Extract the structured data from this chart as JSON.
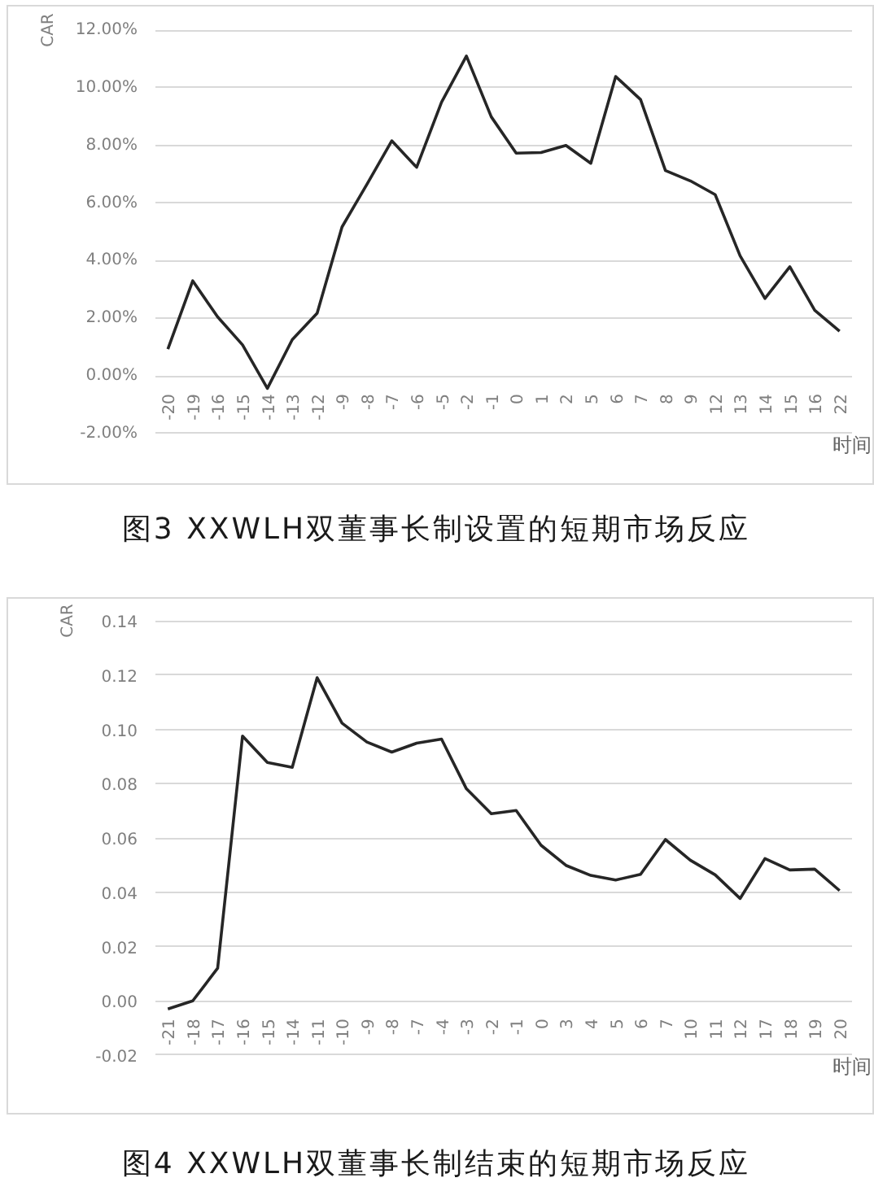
{
  "chart_data": [
    {
      "type": "line",
      "title": "图3 XXWLH双董事长制设置的短期市场反应",
      "xlabel": "时间",
      "ylabel": "CAR",
      "color": "#262626",
      "grid": "y",
      "categories": [
        "-20",
        "-19",
        "-16",
        "-15",
        "-14",
        "-13",
        "-12",
        "-9",
        "-8",
        "-7",
        "-6",
        "-5",
        "-2",
        "-1",
        "0",
        "1",
        "2",
        "5",
        "6",
        "7",
        "8",
        "9",
        "12",
        "13",
        "14",
        "15",
        "16",
        "22"
      ],
      "values": [
        0.93,
        3.3,
        2.05,
        1.08,
        -0.43,
        1.26,
        2.18,
        5.17,
        6.65,
        8.16,
        7.24,
        9.5,
        11.1,
        8.99,
        7.73,
        7.75,
        8.0,
        7.38,
        10.39,
        9.59,
        7.13,
        6.77,
        6.29,
        4.17,
        2.69,
        3.79,
        2.28,
        1.55
      ],
      "ylim": [
        -2,
        12
      ],
      "yticks": [
        {
          "value": -2,
          "label": "-2.00%"
        },
        {
          "value": 0,
          "label": "0.00%"
        },
        {
          "value": 2,
          "label": "2.00%"
        },
        {
          "value": 4,
          "label": "4.00%"
        },
        {
          "value": 6,
          "label": "6.00%"
        },
        {
          "value": 8,
          "label": "8.00%"
        },
        {
          "value": 10,
          "label": "10.00%"
        },
        {
          "value": 12,
          "label": "12.00%"
        }
      ]
    },
    {
      "type": "line",
      "title": "图4 XXWLH双董事长制结束的短期市场反应",
      "xlabel": "时间",
      "ylabel": "CAR",
      "color": "#262626",
      "grid": "y",
      "categories": [
        "-21",
        "-18",
        "-17",
        "-16",
        "-15",
        "-14",
        "-11",
        "-10",
        "-9",
        "-8",
        "-7",
        "-4",
        "-3",
        "-2",
        "-1",
        "0",
        "3",
        "4",
        "5",
        "6",
        "7",
        "10",
        "11",
        "12",
        "17",
        "18",
        "19",
        "20"
      ],
      "values": [
        -0.003,
        0.0,
        0.012,
        0.0975,
        0.0878,
        0.086,
        0.119,
        0.1023,
        0.0953,
        0.0916,
        0.0949,
        0.0964,
        0.0781,
        0.0689,
        0.0701,
        0.0573,
        0.0499,
        0.0462,
        0.0445,
        0.0466,
        0.0594,
        0.0518,
        0.0464,
        0.0377,
        0.0524,
        0.0482,
        0.0485,
        0.0406
      ],
      "ylim": [
        -0.02,
        0.14
      ],
      "yticks": [
        {
          "value": -0.02,
          "label": "-0.02"
        },
        {
          "value": 0,
          "label": "0.00"
        },
        {
          "value": 0.02,
          "label": "0.02"
        },
        {
          "value": 0.04,
          "label": "0.04"
        },
        {
          "value": 0.06,
          "label": "0.06"
        },
        {
          "value": 0.08,
          "label": "0.08"
        },
        {
          "value": 0.1,
          "label": "0.10"
        },
        {
          "value": 0.12,
          "label": "0.12"
        },
        {
          "value": 0.14,
          "label": "0.14"
        }
      ]
    }
  ]
}
